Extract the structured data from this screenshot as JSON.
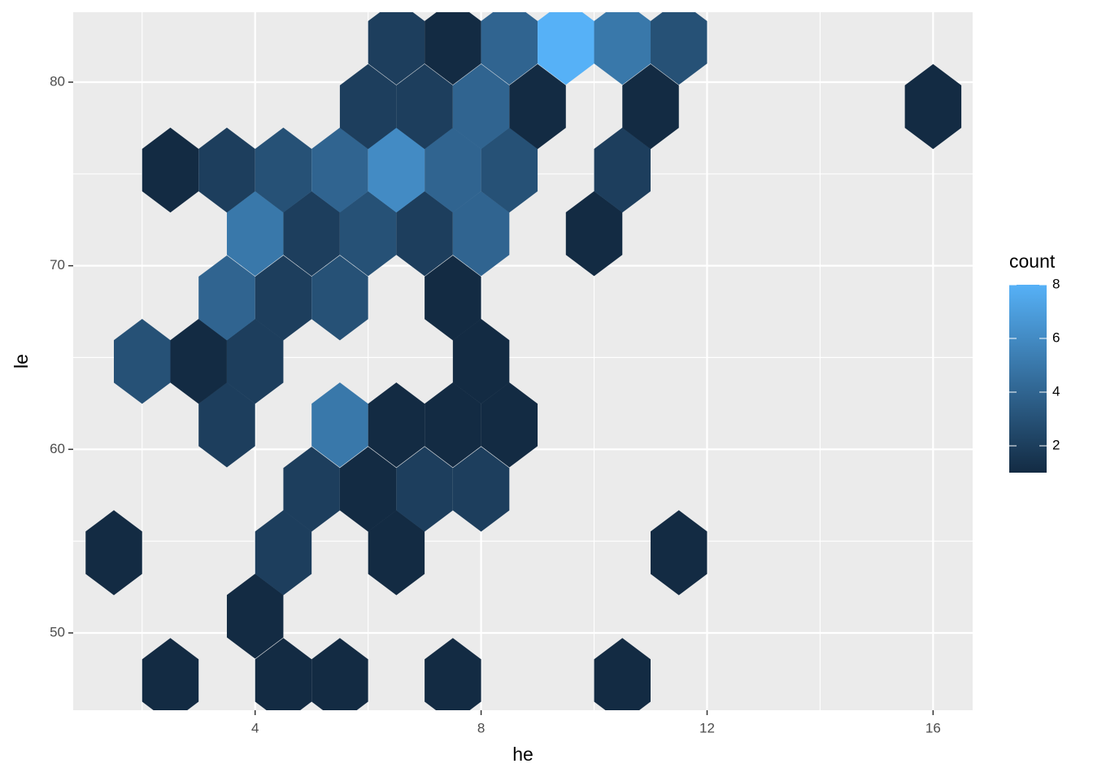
{
  "chart_data": {
    "type": "hexbin",
    "x_label": "he",
    "y_label": "le",
    "legend_title": "count",
    "x": [
      2.5,
      4.5,
      5.5,
      7.5,
      10.5,
      4,
      1.5,
      4.5,
      6.5,
      11.5,
      5,
      6,
      7,
      8,
      3.5,
      5.5,
      6.5,
      7.5,
      8.5,
      2,
      3,
      4,
      8,
      3.5,
      4.5,
      5.5,
      7.5,
      4,
      5,
      6,
      7,
      8,
      10,
      2.5,
      3.5,
      4.5,
      5.5,
      6.5,
      7.5,
      8.5,
      10.5,
      6,
      7,
      8,
      9,
      11,
      16,
      6.5,
      7.5,
      8.5,
      9.5,
      10.5,
      11.5
    ],
    "y": [
      47.41,
      47.41,
      47.41,
      47.41,
      47.41,
      50.91,
      54.37,
      54.37,
      54.37,
      54.37,
      57.83,
      57.83,
      57.83,
      57.83,
      61.33,
      61.33,
      61.33,
      61.33,
      61.33,
      64.79,
      64.79,
      64.79,
      64.79,
      68.25,
      68.25,
      68.25,
      68.25,
      71.75,
      71.75,
      71.75,
      71.75,
      71.75,
      71.75,
      75.21,
      75.21,
      75.21,
      75.21,
      75.21,
      75.21,
      75.21,
      75.21,
      78.67,
      78.67,
      78.67,
      78.67,
      78.67,
      78.67,
      82.17,
      82.17,
      82.17,
      82.17,
      82.17,
      82.17
    ],
    "values": [
      1,
      1,
      1,
      1,
      1,
      1,
      1,
      2,
      1,
      1,
      2,
      1,
      2,
      2,
      2,
      5,
      1,
      1,
      1,
      3,
      1,
      2,
      1,
      4,
      2,
      3,
      1,
      5,
      2,
      3,
      2,
      4,
      1,
      1,
      2,
      3,
      4,
      6,
      4,
      3,
      2,
      2,
      2,
      4,
      1,
      1,
      1,
      2,
      1,
      4,
      8,
      5,
      3
    ],
    "binwidth": [
      1,
      6.94
    ],
    "color_low": "#132B43",
    "color_high": "#56B1F7",
    "colorbar_lim": [
      1,
      8
    ],
    "colorbar_ticks": [
      2,
      4,
      6,
      8
    ],
    "xlim": [
      0.78,
      16.7
    ],
    "ylim": [
      45.79,
      83.81
    ],
    "xticks": [
      4,
      8,
      12,
      16
    ],
    "yticks": [
      50,
      60,
      70,
      80
    ],
    "x_minor_ticks": [
      2,
      6,
      10,
      14
    ],
    "y_minor_ticks": [
      55,
      65,
      75
    ],
    "grid": true
  }
}
